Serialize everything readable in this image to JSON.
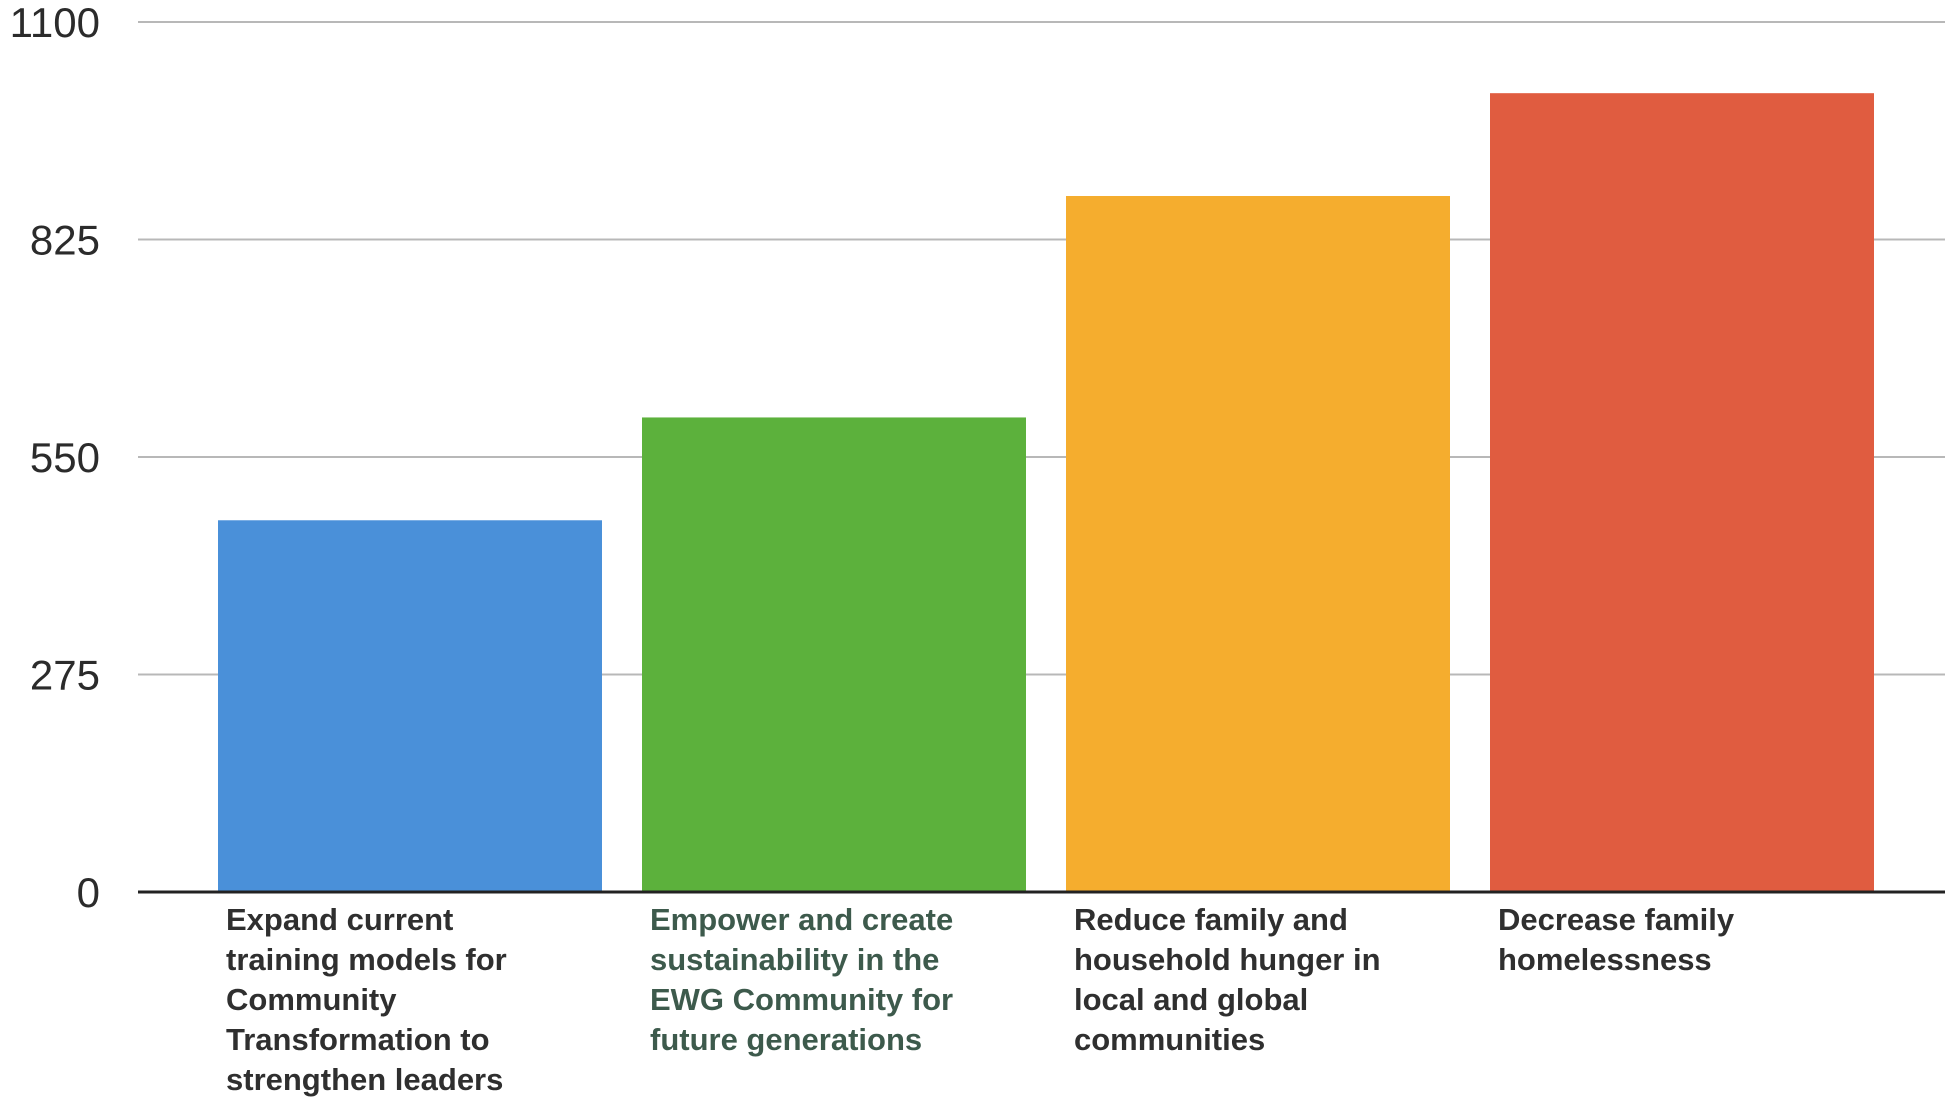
{
  "chart_data": {
    "type": "bar",
    "y_tick_labels": [
      "0",
      "275",
      "550",
      "825",
      "1100"
    ],
    "y_tick_values": [
      0,
      275,
      550,
      825,
      1100
    ],
    "ylim": [
      0,
      1100
    ],
    "grid": true,
    "categories": [
      "Expand current training models for Community Transformation to strengthen leaders",
      "Empower and create sustainability in the EWG Community for future generations",
      "Reduce family and household hunger in local and global communities",
      "Decrease family homelessness"
    ],
    "values": [
      470,
      600,
      880,
      1010
    ],
    "colors": [
      "#4a90d9",
      "#5cb13c",
      "#f5ad2e",
      "#e05c40"
    ],
    "label_colors": [
      "#2f2f2f",
      "#3d5a4c",
      "#2f2f2f",
      "#2f2f2f"
    ],
    "title": "",
    "xlabel": "",
    "ylabel": ""
  }
}
